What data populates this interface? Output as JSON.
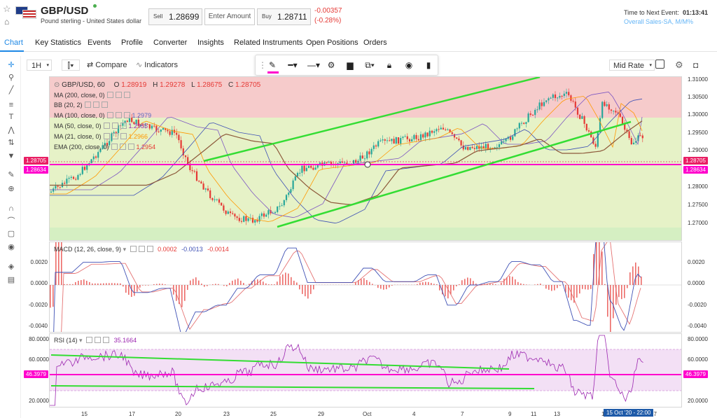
{
  "header": {
    "symbol": "GBP/USD",
    "description": "Pound sterling - United States dollar",
    "sell_label": "Sell",
    "sell_price": "1.28699",
    "amount_placeholder": "Enter Amount",
    "buy_label": "Buy",
    "buy_price": "1.28711",
    "change": "-0.00357",
    "change_pct": "(-0.28%)",
    "next_event_label": "Time to Next Event:",
    "next_event_time": "01:13:41",
    "next_event_name": "Overall Sales-SA, M/M%"
  },
  "tabs": [
    "Chart",
    "Key Statistics",
    "Events",
    "Profile",
    "Converter",
    "Insights",
    "Related Instruments",
    "Open Positions",
    "Orders"
  ],
  "toolbar": {
    "interval": "1H",
    "compare_label": "Compare",
    "indicators_label": "Indicators",
    "rate_select": "Mid Rate"
  },
  "chart_panel": {
    "title": "GBP/USD, 60",
    "ohlc": {
      "o_label": "O",
      "o": "1.28919",
      "h_label": "H",
      "h": "1.29278",
      "l_label": "L",
      "l": "1.28675",
      "c_label": "C",
      "c": "1.28705"
    },
    "legend": [
      {
        "label": "MA (200, close, 0)",
        "value": ""
      },
      {
        "label": "BB (20, 2)",
        "value": ""
      },
      {
        "label": "MA (100, close, 0)",
        "value": "1.2979"
      },
      {
        "label": "MA (50, close, 0)",
        "value": "1.2955"
      },
      {
        "label": "MA (21, close, 0)",
        "value": "1.2966"
      },
      {
        "label": "EMA (200, close, 0)",
        "value": "1.2954"
      }
    ],
    "price_tags": {
      "current": "1.28705",
      "line": "1.28634"
    },
    "y_ticks": [
      "1.31000",
      "1.30500",
      "1.30000",
      "1.29500",
      "1.29000",
      "1.28500",
      "1.28000",
      "1.27500",
      "1.27000"
    ]
  },
  "macd_panel": {
    "label": "MACD (12, 26, close, 9)",
    "v1": "0.0002",
    "v2": "-0.0013",
    "v3": "-0.0014",
    "y_ticks": [
      "0.0020",
      "0.0000",
      "-0.0020",
      "-0.0040"
    ]
  },
  "rsi_panel": {
    "label": "RSI (14)",
    "value": "35.1664",
    "line_tag": "46.3979",
    "y_ticks": [
      "80.0000",
      "60.0000",
      "40.0000",
      "20.0000"
    ]
  },
  "x_axis": {
    "ticks": [
      "15",
      "17",
      "20",
      "23",
      "25",
      "29",
      "Oct",
      "4",
      "7",
      "9",
      "11",
      "13",
      "15",
      "17"
    ],
    "crosshair_label": "15 Oct '20 - 22:00"
  },
  "colors": {
    "accent": "#1e88e5",
    "down": "#e53935",
    "up": "#26a69a",
    "trend": "#33dd33",
    "magenta": "#ff00cc"
  }
}
